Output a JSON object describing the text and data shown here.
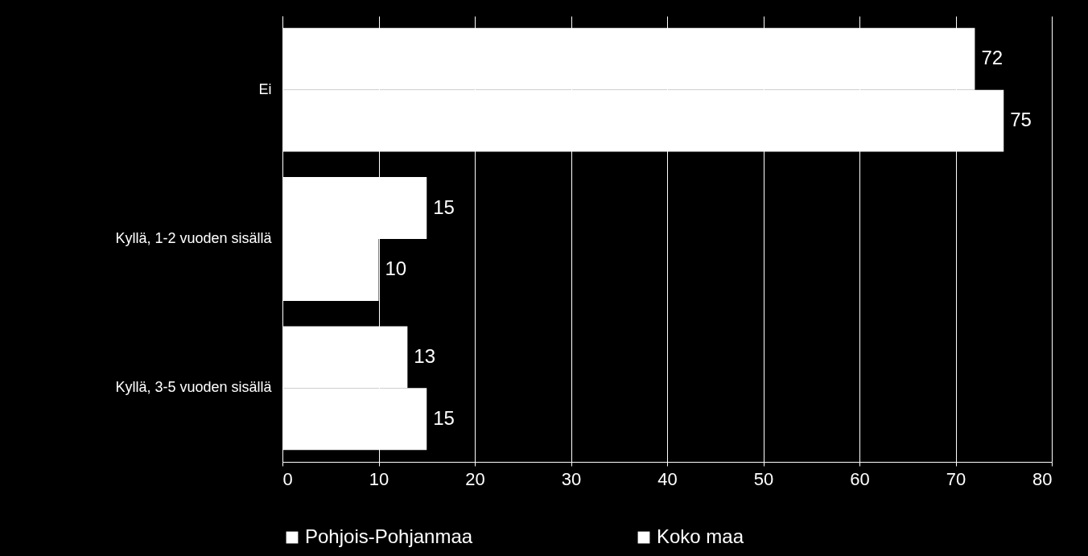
{
  "chart_data": {
    "type": "bar",
    "orientation": "horizontal",
    "categories": [
      "Ei",
      "Kyllä, 1-2 vuoden sisällä",
      "Kyllä, 3-5 vuoden sisällä"
    ],
    "series": [
      {
        "name": "Pohjois-Pohjanmaa",
        "color": "#ffffff",
        "values": [
          72,
          15,
          13
        ]
      },
      {
        "name": "Koko maa",
        "color": "#ffffff",
        "values": [
          75,
          10,
          15
        ]
      }
    ],
    "xlim": [
      0,
      80
    ],
    "xticks": [
      0,
      10,
      20,
      30,
      40,
      50,
      60,
      70,
      80
    ],
    "grid": "x",
    "legend": "bottom",
    "data_labels": true
  }
}
